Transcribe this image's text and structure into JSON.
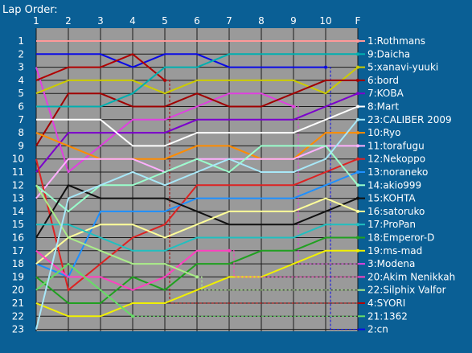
{
  "chart_data": {
    "type": "line",
    "title": "Lap Order:",
    "x": [
      "1",
      "2",
      "3",
      "4",
      "5",
      "6",
      "7",
      "8",
      "9",
      "10",
      "F"
    ],
    "positions": [
      1,
      2,
      3,
      4,
      5,
      6,
      7,
      8,
      9,
      10,
      11,
      12,
      13,
      14,
      15,
      16,
      17,
      18,
      19,
      20,
      21,
      22,
      23
    ],
    "y_inverted": true,
    "grid": true,
    "legend": "right",
    "colors": {
      "background": "#0a5f95",
      "plot": "#9a9a9a",
      "grid": "#1a1a1a",
      "text": "#ffffff"
    },
    "series": [
      {
        "name": "1:Rothmans",
        "color": "#ff9999",
        "positions": [
          1,
          1,
          1,
          1,
          1,
          1,
          1,
          1,
          1,
          1,
          1
        ]
      },
      {
        "name": "2:cn",
        "color": "#0a0ae6",
        "positions": [
          2,
          2,
          2,
          3,
          2,
          2,
          3,
          3,
          3,
          3,
          null
        ],
        "retired_after": "10",
        "retired_to": 23
      },
      {
        "name": "3:Modena",
        "color": "#e040e0",
        "positions": [
          3,
          11,
          9,
          7,
          7,
          6,
          5,
          5,
          6,
          null,
          null
        ],
        "retired_after": "9",
        "retired_to": 18
      },
      {
        "name": "4:SYORI",
        "color": "#b00000",
        "positions": [
          4,
          3,
          3,
          2,
          4,
          null,
          null,
          null,
          null,
          null,
          null
        ],
        "retired_after": "5",
        "retired_to": 21
      },
      {
        "name": "5:xanavi-yuuki",
        "color": "#cccc00",
        "positions": [
          5,
          4,
          4,
          4,
          5,
          4,
          4,
          4,
          4,
          5,
          3
        ]
      },
      {
        "name": "6:bord",
        "color": "#a00000",
        "positions": [
          9,
          5,
          5,
          6,
          6,
          5,
          6,
          6,
          5,
          4,
          4
        ]
      },
      {
        "name": "7:KOBA",
        "color": "#7b00cc",
        "positions": [
          11,
          8,
          8,
          8,
          8,
          7,
          7,
          7,
          7,
          6,
          5
        ]
      },
      {
        "name": "8:Mart",
        "color": "#ffffff",
        "positions": [
          7,
          7,
          7,
          9,
          9,
          8,
          8,
          8,
          8,
          7,
          6
        ]
      },
      {
        "name": "9:Daicha",
        "color": "#00b0b0",
        "positions": [
          6,
          6,
          6,
          5,
          3,
          3,
          2,
          2,
          2,
          2,
          2
        ]
      },
      {
        "name": "10:Ryo",
        "color": "#ff8c00",
        "positions": [
          8,
          9,
          10,
          10,
          10,
          9,
          9,
          10,
          10,
          8,
          8
        ]
      },
      {
        "name": "11:torafugu",
        "color": "#ffb0ff",
        "positions": [
          13,
          10,
          10,
          10,
          11,
          10,
          10,
          10,
          10,
          9,
          9
        ]
      },
      {
        "name": "12:Nekoppo",
        "color": "#dd2222",
        "positions": [
          10,
          20,
          18,
          16,
          15,
          12,
          12,
          12,
          12,
          11,
          10
        ]
      },
      {
        "name": "13:noraneko",
        "color": "#1e90ff",
        "positions": [
          18,
          19,
          14,
          14,
          14,
          13,
          13,
          13,
          13,
          12,
          11
        ]
      },
      {
        "name": "14:akio999",
        "color": "#99ffcc",
        "positions": [
          12,
          14,
          12,
          12,
          11,
          10,
          11,
          9,
          9,
          9,
          12
        ]
      },
      {
        "name": "15:KOHTA",
        "color": "#101010",
        "positions": [
          16,
          12,
          13,
          13,
          13,
          14,
          15,
          15,
          15,
          14,
          13
        ]
      },
      {
        "name": "16:satoruko",
        "color": "#ffff99",
        "positions": [
          18,
          16,
          15,
          15,
          16,
          15,
          14,
          14,
          14,
          13,
          14
        ]
      },
      {
        "name": "17:ProPan",
        "color": "#20c0c0",
        "positions": [
          15,
          15,
          16,
          17,
          17,
          16,
          16,
          16,
          16,
          15,
          15
        ]
      },
      {
        "name": "18:Emperor-D",
        "color": "#20a020",
        "positions": [
          19,
          21,
          21,
          19,
          20,
          18,
          18,
          17,
          17,
          16,
          16
        ]
      },
      {
        "name": "19:ms-mad",
        "color": "#f0f000",
        "positions": [
          21,
          22,
          22,
          21,
          21,
          20,
          19,
          19,
          18,
          17,
          17
        ]
      },
      {
        "name": "20:Akim Nenikkah",
        "color": "#ff40c0",
        "positions": [
          17,
          19,
          19,
          20,
          19,
          17,
          17,
          null,
          null,
          null,
          null
        ],
        "retired_after": "7",
        "retired_to": 19
      },
      {
        "name": "21:1362",
        "color": "#66dd66",
        "positions": [
          20,
          18,
          20,
          22,
          null,
          null,
          null,
          null,
          null,
          null,
          null
        ],
        "retired_after": "4",
        "retired_to": 22
      },
      {
        "name": "22:Silphix Valfor",
        "color": "#aaee88",
        "positions": [
          12,
          16,
          17,
          18,
          18,
          19,
          null,
          null,
          null,
          null,
          null
        ],
        "retired_after": "6",
        "retired_to": 20
      },
      {
        "name": "23:CALIBER 2009",
        "color": "#a8e8f8",
        "positions": [
          23,
          13,
          12,
          11,
          12,
          11,
          10,
          11,
          11,
          10,
          7
        ]
      }
    ]
  }
}
